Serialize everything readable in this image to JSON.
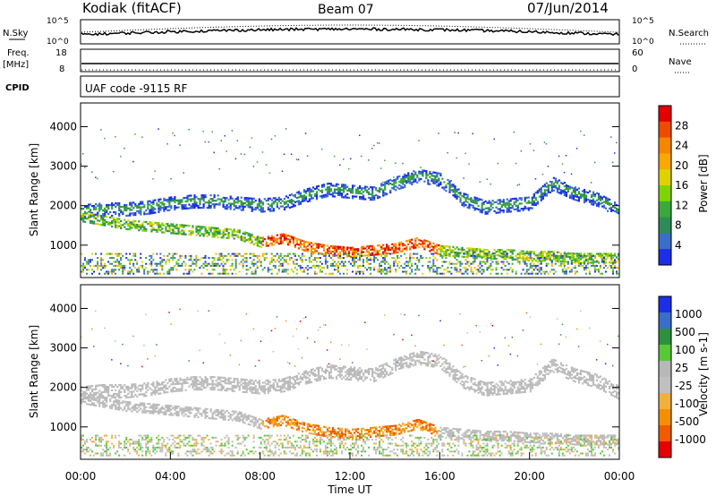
{
  "header": {
    "station": "Kodiak (fitACF)",
    "beam": "Beam 07",
    "date": "07/Jun/2014"
  },
  "side_labels": {
    "n_sky": "N.Sky",
    "n_search": "N.Search",
    "freq": "Freq.",
    "freq_unit": "[MHz]",
    "nave": "Nave",
    "cpid": "CPID"
  },
  "cpid_text": "UAF code -9115 RF",
  "panels": {
    "noise": {
      "left_ticks": [
        "10^5",
        "10^0"
      ],
      "right_ticks": [
        "10^5",
        "10^0"
      ]
    },
    "freq": {
      "left_ticks": [
        "18",
        "8"
      ],
      "right_ticks": [
        "60",
        "0"
      ]
    }
  },
  "colors": {
    "palette": [
      "#e40000",
      "#ef4b00",
      "#f68600",
      "#f8a800",
      "#e0d200",
      "#7fd400",
      "#3aa83a",
      "#2e8b57",
      "#3a6ec8",
      "#1c2ee8"
    ],
    "velocity_palette": [
      "#e40000",
      "#f05a00",
      "#f49000",
      "#f0b040",
      "#c0c0c0",
      "#b8b8b8",
      "#58c838",
      "#2e9040",
      "#3a6ec8",
      "#1c2ee8"
    ]
  },
  "chart_data": [
    {
      "type": "heatmap",
      "title": "",
      "quantity": "Power",
      "xlabel": "",
      "ylabel": "Slant Range [km]",
      "xlim": [
        0,
        24
      ],
      "ylim": [
        180,
        4600
      ],
      "yticks": [
        1000,
        2000,
        3000,
        4000
      ],
      "ytick_labels": [
        "1000",
        "2000",
        "3000",
        "4000"
      ],
      "colorbar": {
        "label": "Power [dB]",
        "ticks": [
          "4",
          "8",
          "12",
          "16",
          "20",
          "24",
          "28"
        ],
        "range": [
          0,
          30
        ]
      },
      "features": [
        {
          "name": "band_upper",
          "t": [
            0,
            1,
            2,
            3,
            4,
            5,
            6,
            7,
            8,
            9,
            10,
            11,
            12,
            13,
            14,
            15,
            16,
            17,
            18,
            19,
            20,
            21,
            22,
            23,
            24
          ],
          "range_km": [
            1900,
            1950,
            1950,
            2000,
            2100,
            2150,
            2150,
            2100,
            2050,
            2100,
            2300,
            2450,
            2400,
            2350,
            2600,
            2800,
            2700,
            2200,
            2000,
            2050,
            2100,
            2600,
            2350,
            2200,
            1900
          ]
        },
        {
          "name": "band_lower",
          "t": [
            0,
            1,
            2,
            3,
            4,
            5,
            6,
            7,
            8,
            9,
            10,
            11,
            12,
            13,
            14,
            15,
            16,
            17,
            18,
            19,
            20,
            21,
            22,
            23,
            24
          ],
          "range_km": [
            1750,
            1650,
            1550,
            1500,
            1450,
            1400,
            1350,
            1300,
            1100,
            1200,
            1000,
            900,
            850,
            900,
            950,
            1100,
            900,
            850,
            800,
            800,
            750,
            750,
            700,
            700,
            700
          ]
        },
        {
          "name": "low_echo",
          "t_start": 0,
          "t_end": 24,
          "range_km": [
            300,
            850
          ]
        }
      ]
    },
    {
      "type": "heatmap",
      "title": "",
      "quantity": "Velocity",
      "xlabel": "Time UT",
      "ylabel": "Slant Range [km]",
      "xlim": [
        0,
        24
      ],
      "ylim": [
        180,
        4600
      ],
      "xticks": [
        0,
        4,
        8,
        12,
        16,
        20,
        24
      ],
      "xtick_labels": [
        "00:00",
        "04:00",
        "08:00",
        "12:00",
        "16:00",
        "20:00",
        "00:00"
      ],
      "yticks": [
        1000,
        2000,
        3000,
        4000
      ],
      "ytick_labels": [
        "1000",
        "2000",
        "3000",
        "4000"
      ],
      "colorbar": {
        "label": "Velocity [m s-1]",
        "ticks": [
          "1000",
          "500",
          "100",
          "25",
          "-25",
          "-100",
          "-500",
          "-1000"
        ]
      }
    }
  ]
}
